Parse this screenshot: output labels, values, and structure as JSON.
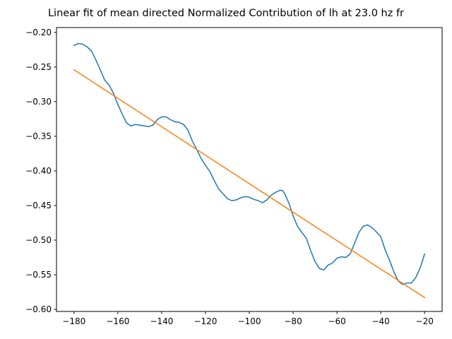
{
  "chart_data": {
    "type": "line",
    "title": "Linear fit of mean directed Normalized Contribution of lh at 23.0 hz fr",
    "xlabel": "",
    "ylabel": "",
    "xlim": [
      -188,
      -12
    ],
    "ylim": [
      -0.603,
      -0.193
    ],
    "xticks": [
      -180,
      -160,
      -140,
      -120,
      -100,
      -80,
      -60,
      -40,
      -20
    ],
    "xtick_labels": [
      "−180",
      "−160",
      "−140",
      "−120",
      "−100",
      "−80",
      "−60",
      "−40",
      "−20"
    ],
    "yticks": [
      -0.6,
      -0.55,
      -0.5,
      -0.45,
      -0.4,
      -0.35,
      -0.3,
      -0.25,
      -0.2
    ],
    "ytick_labels": [
      "−0.60",
      "−0.55",
      "−0.50",
      "−0.45",
      "−0.40",
      "−0.35",
      "−0.30",
      "−0.25",
      "−0.20"
    ],
    "grid": false,
    "series": [
      {
        "color": "#1f77b4",
        "x": [
          -180,
          -178,
          -176,
          -174,
          -172,
          -170,
          -168,
          -166,
          -164,
          -162,
          -160,
          -158,
          -156,
          -154,
          -152,
          -150,
          -148,
          -146,
          -144,
          -142,
          -140,
          -138,
          -136,
          -134,
          -132,
          -130,
          -128,
          -126,
          -124,
          -122,
          -120,
          -118,
          -116,
          -114,
          -112,
          -110,
          -108,
          -106,
          -104,
          -102,
          -100,
          -98,
          -96,
          -94,
          -92,
          -90,
          -88,
          -86,
          -85,
          -84,
          -82,
          -80,
          -78,
          -76,
          -74,
          -72,
          -70,
          -68,
          -66,
          -64,
          -62,
          -60,
          -58,
          -56,
          -54,
          -52,
          -50,
          -48,
          -46,
          -44,
          -42,
          -40,
          -38,
          -36,
          -34,
          -32,
          -30,
          -28,
          -26,
          -24,
          -22,
          -20
        ],
        "y": [
          -0.219,
          -0.216,
          -0.217,
          -0.221,
          -0.227,
          -0.24,
          -0.254,
          -0.269,
          -0.276,
          -0.288,
          -0.304,
          -0.318,
          -0.331,
          -0.335,
          -0.333,
          -0.334,
          -0.335,
          -0.336,
          -0.334,
          -0.326,
          -0.322,
          -0.322,
          -0.326,
          -0.329,
          -0.33,
          -0.333,
          -0.341,
          -0.357,
          -0.369,
          -0.382,
          -0.392,
          -0.401,
          -0.414,
          -0.426,
          -0.433,
          -0.44,
          -0.443,
          -0.442,
          -0.439,
          -0.437,
          -0.438,
          -0.441,
          -0.443,
          -0.446,
          -0.442,
          -0.435,
          -0.431,
          -0.428,
          -0.428,
          -0.432,
          -0.446,
          -0.465,
          -0.48,
          -0.489,
          -0.497,
          -0.515,
          -0.531,
          -0.541,
          -0.543,
          -0.536,
          -0.533,
          -0.526,
          -0.524,
          -0.525,
          -0.52,
          -0.505,
          -0.489,
          -0.48,
          -0.478,
          -0.482,
          -0.488,
          -0.495,
          -0.514,
          -0.529,
          -0.546,
          -0.559,
          -0.564,
          -0.562,
          -0.562,
          -0.554,
          -0.54,
          -0.52
        ]
      },
      {
        "color": "#ff7f0e",
        "x": [
          -180,
          -20
        ],
        "y": [
          -0.254,
          -0.583
        ]
      }
    ]
  }
}
